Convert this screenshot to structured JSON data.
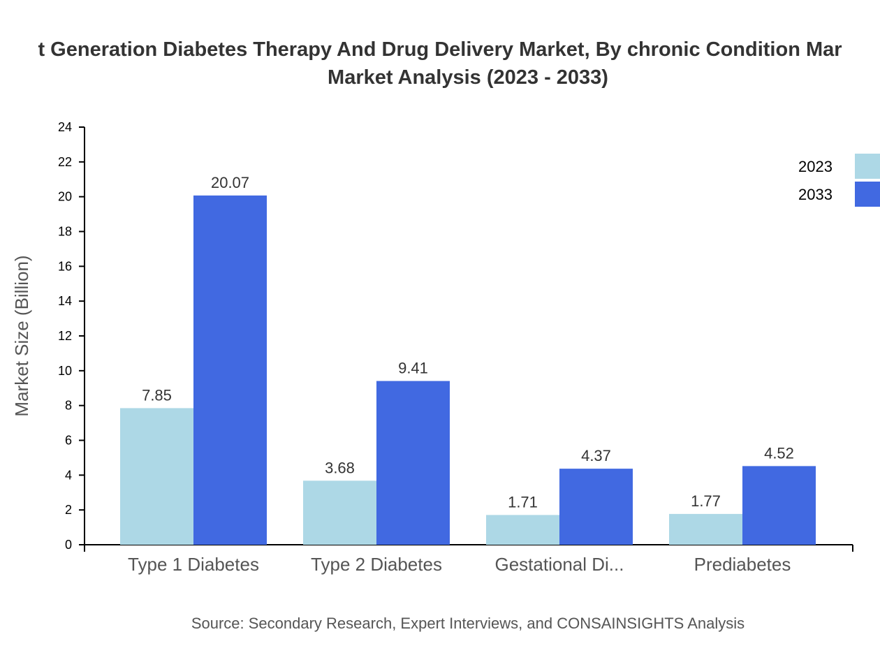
{
  "chart_data": {
    "type": "bar",
    "title_line1": "t Generation Diabetes Therapy And Drug Delivery Market, By chronic Condition Mar",
    "title_line2": "Market Analysis (2023 - 2033)",
    "xlabel": "",
    "ylabel": "Market Size (Billion)",
    "ylim": [
      0,
      24
    ],
    "yticks": [
      "0",
      "2",
      "4",
      "6",
      "8",
      "10",
      "12",
      "14",
      "16",
      "18",
      "20",
      "22",
      "24"
    ],
    "categories": [
      "Type 1 Diabetes",
      "Type 2 Diabetes",
      "Gestational Di...",
      "Prediabetes"
    ],
    "series": [
      {
        "name": "2023",
        "color": "#add8e6",
        "values": [
          7.85,
          3.68,
          1.71,
          1.77
        ],
        "labels": [
          "7.85",
          "3.68",
          "1.71",
          "1.77"
        ]
      },
      {
        "name": "2033",
        "color": "#4169e1",
        "values": [
          20.07,
          9.41,
          4.37,
          4.52
        ],
        "labels": [
          "20.07",
          "9.41",
          "4.37",
          "4.52"
        ]
      }
    ],
    "legend_position": "top-right",
    "grid": false,
    "source": "Source: Secondary Research, Expert Interviews, and CONSAINSIGHTS Analysis"
  }
}
